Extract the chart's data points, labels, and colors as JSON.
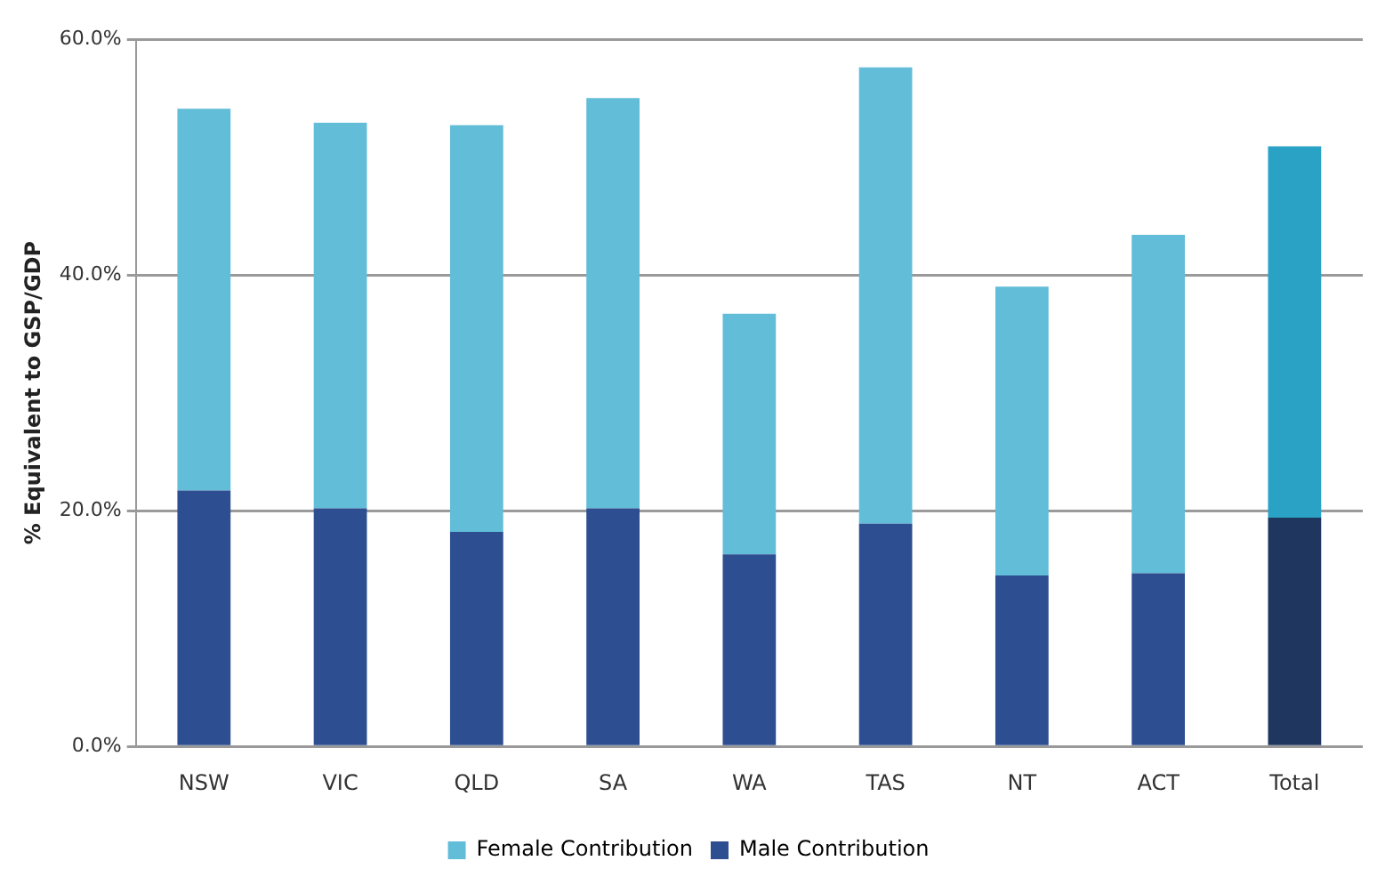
{
  "chart_data": {
    "type": "bar",
    "ylabel": "% Equivalent to GSP/GDP",
    "categories": [
      "NSW",
      "VIC",
      "QLD",
      "SA",
      "WA",
      "TAS",
      "NT",
      "ACT",
      "Total"
    ],
    "stacked": true,
    "series": [
      {
        "name": "Male Contribution",
        "color": "#2d4e91",
        "colors": [
          "#2d4e91",
          "#2d4e91",
          "#2d4e91",
          "#2d4e91",
          "#2d4e91",
          "#2d4e91",
          "#2d4e91",
          "#2d4e91",
          "#1f365f"
        ],
        "values": [
          21.7,
          20.2,
          18.2,
          20.2,
          16.3,
          18.9,
          14.5,
          14.7,
          19.4
        ]
      },
      {
        "name": "Female Contribution",
        "color": "#62bdd8",
        "colors": [
          "#62bdd8",
          "#62bdd8",
          "#62bdd8",
          "#62bdd8",
          "#62bdd8",
          "#62bdd8",
          "#62bdd8",
          "#62bdd8",
          "#2aa2c6"
        ],
        "values": [
          32.4,
          32.7,
          34.5,
          34.8,
          20.4,
          38.7,
          24.5,
          28.7,
          31.5
        ]
      }
    ],
    "ylim": [
      0,
      60
    ],
    "yticks": [
      {
        "value": 0,
        "label": "0.0%"
      },
      {
        "value": 20,
        "label": "20.0%"
      },
      {
        "value": 40,
        "label": "40.0%"
      },
      {
        "value": 60,
        "label": "60.0%"
      }
    ],
    "grid": "y",
    "legend": "bottom"
  }
}
